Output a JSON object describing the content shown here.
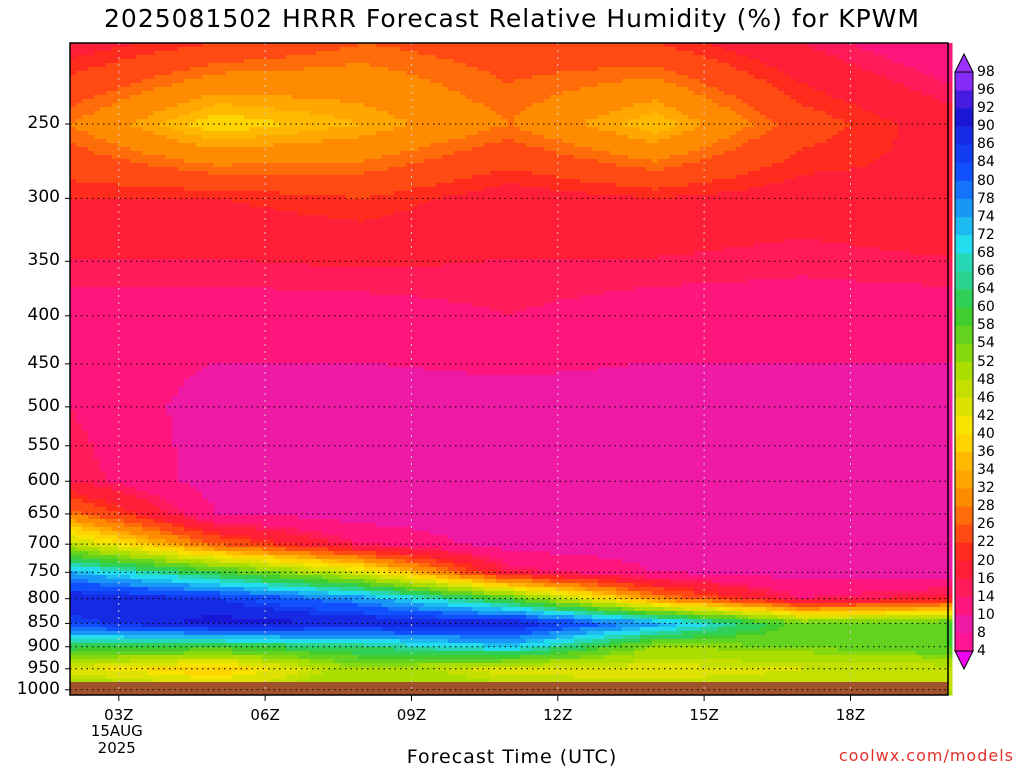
{
  "chart_data": {
    "type": "heatmap",
    "title": "2025081502 HRRR Forecast Relative Humidity (%) for KPWM",
    "xlabel": "Forecast Time (UTC)",
    "ylabel": "",
    "x_ticks": [
      "03Z",
      "06Z",
      "09Z",
      "12Z",
      "15Z",
      "18Z"
    ],
    "x_tick_date": [
      "15AUG",
      "2025"
    ],
    "y_ticks": [
      250,
      300,
      350,
      400,
      450,
      500,
      550,
      600,
      650,
      700,
      750,
      800,
      850,
      900,
      950,
      1000
    ],
    "y_scale": "log-pressure (hPa)",
    "y_range": [
      1013,
      205
    ],
    "x_range_hours": [
      2,
      20
    ],
    "grid": "dotted",
    "colorbar": {
      "levels": [
        4,
        8,
        10,
        14,
        16,
        20,
        22,
        26,
        28,
        32,
        34,
        36,
        40,
        42,
        46,
        48,
        52,
        54,
        58,
        60,
        64,
        66,
        68,
        72,
        74,
        78,
        80,
        84,
        86,
        90,
        92,
        96,
        98
      ],
      "colors": {
        "dry_pink": "#ff1493",
        "red": "#ff2020",
        "orange": "#ff8c00",
        "yellow": "#ffe600",
        "green": "#33cc33",
        "cyan": "#22ddee",
        "blue": "#1050ff",
        "purple": "#9b30ff"
      }
    },
    "ground_color": "#a0522d",
    "rh_profile_hours": [
      2,
      5,
      8,
      11,
      14,
      17,
      20
    ],
    "rh_profile_levels": [
      205,
      250,
      300,
      400,
      500,
      600,
      650,
      700,
      750,
      800,
      850,
      900,
      950,
      1000
    ],
    "rh_values": [
      [
        18,
        22,
        26,
        24,
        22,
        16,
        10
      ],
      [
        28,
        38,
        34,
        28,
        36,
        24,
        18
      ],
      [
        20,
        20,
        22,
        18,
        20,
        18,
        20
      ],
      [
        12,
        12,
        12,
        14,
        12,
        12,
        12
      ],
      [
        14,
        8,
        8,
        8,
        8,
        8,
        8
      ],
      [
        16,
        8,
        8,
        8,
        8,
        8,
        8
      ],
      [
        28,
        10,
        8,
        8,
        8,
        8,
        8
      ],
      [
        48,
        26,
        14,
        8,
        8,
        8,
        8
      ],
      [
        74,
        60,
        44,
        16,
        10,
        8,
        8
      ],
      [
        90,
        86,
        76,
        58,
        30,
        14,
        18
      ],
      [
        84,
        92,
        90,
        90,
        76,
        56,
        58
      ],
      [
        62,
        60,
        64,
        72,
        52,
        54,
        58
      ],
      [
        44,
        36,
        52,
        44,
        44,
        46,
        46
      ],
      [
        54,
        48,
        52,
        50,
        48,
        48,
        48
      ]
    ]
  },
  "credit": "coolwx.com/models"
}
